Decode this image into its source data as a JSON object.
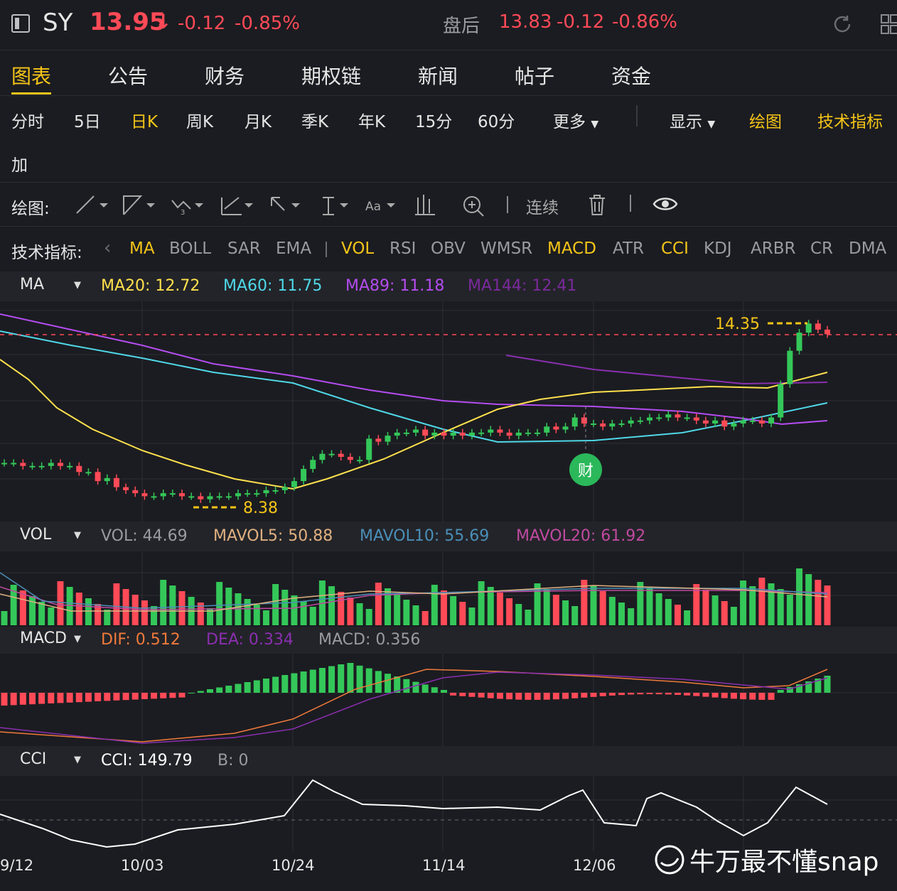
{
  "header": {
    "symbol": "SY",
    "price": "13.95",
    "arrow": "↓",
    "change": "-0.12",
    "change_pct": "-0.85%",
    "after_hours_label": "盘后",
    "after_hours_price": "13.83",
    "after_hours_change": "-0.12",
    "after_hours_pct": "-0.86%"
  },
  "tabs": [
    "图表",
    "公告",
    "财务",
    "期权链",
    "新闻",
    "帖子",
    "资金"
  ],
  "active_tab": "图表",
  "timeframes": [
    "分时",
    "5日",
    "日K",
    "周K",
    "月K",
    "季K",
    "年K",
    "15分",
    "60分"
  ],
  "more_label": "更多",
  "display_label": "显示",
  "draw_label": "绘图",
  "tech_label": "技术指标",
  "add_label": "加",
  "draw_toolbar": {
    "label": "绘图:",
    "continuous": "连续",
    "aa": "Aa"
  },
  "indicators": {
    "label": "技术指标:",
    "main": [
      "MA",
      "BOLL",
      "SAR",
      "EMA"
    ],
    "sub": [
      "VOL",
      "RSI",
      "OBV",
      "WMSR",
      "MACD",
      "ATR",
      "CCI",
      "KDJ",
      "ARBR",
      "CR",
      "DMA"
    ],
    "active": [
      "MA",
      "VOL",
      "MACD",
      "CCI"
    ]
  },
  "ma_legend": {
    "name": "MA",
    "ma20": "MA20: 12.72",
    "ma60": "MA60: 11.75",
    "ma89": "MA89: 11.18",
    "ma144": "MA144: 12.41"
  },
  "vol_legend": {
    "name": "VOL",
    "vol": "VOL: 44.69",
    "mavol5": "MAVOL5: 50.88",
    "mavol10": "MAVOL10: 55.69",
    "mavol20": "MAVOL20: 61.92"
  },
  "macd_legend": {
    "name": "MACD",
    "dif": "DIF: 0.512",
    "dea": "DEA: 0.334",
    "macd": "MACD: 0.356"
  },
  "cci_legend": {
    "name": "CCI",
    "cci": "CCI: 149.79",
    "b": "B: 0"
  },
  "annotations": {
    "high": "14.35",
    "low": "8.38",
    "earnings_marker": "财"
  },
  "x_axis": [
    "9/12",
    "10/03",
    "10/24",
    "11/14",
    "12/06"
  ],
  "watermark": "牛万最不懂snap",
  "colors": {
    "up": "#34c759",
    "down": "#ff4a57",
    "ma20": "#ffe14d",
    "ma60": "#4fd8e8",
    "ma89": "#b44cf0",
    "ma144": "#8a2fb0",
    "accent": "#f5c518"
  },
  "chart_data": {
    "type": "candlestick",
    "closes": [
      9.7,
      9.7,
      9.6,
      9.6,
      9.6,
      9.7,
      9.6,
      9.6,
      9.4,
      9.4,
      9.1,
      9.2,
      8.9,
      8.8,
      8.7,
      8.6,
      8.6,
      8.7,
      8.7,
      8.6,
      8.6,
      8.5,
      8.6,
      8.6,
      8.6,
      8.7,
      8.7,
      8.7,
      8.8,
      8.8,
      8.9,
      9.1,
      9.5,
      9.8,
      10.0,
      10.0,
      9.9,
      9.8,
      9.8,
      10.5,
      10.4,
      10.6,
      10.7,
      10.7,
      10.8,
      10.6,
      10.7,
      10.6,
      10.7,
      10.6,
      10.7,
      10.7,
      10.8,
      10.7,
      10.6,
      10.7,
      10.7,
      10.7,
      10.9,
      10.8,
      10.9,
      11.2,
      11.0,
      11.0,
      10.9,
      11.0,
      11.0,
      11.1,
      11.1,
      11.2,
      11.2,
      11.3,
      11.2,
      11.2,
      11.1,
      11.0,
      11.1,
      10.9,
      11.0,
      11.1,
      11.1,
      11.0,
      11.2,
      12.3,
      13.4,
      14.0,
      14.3,
      14.1,
      13.95
    ]
  }
}
